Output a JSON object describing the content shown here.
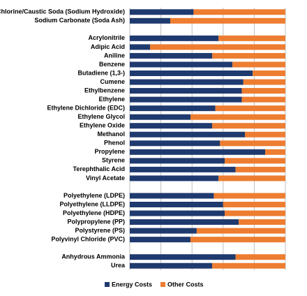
{
  "chart_data": {
    "type": "stacked_bar_horizontal",
    "categories": [
      "Chlorine/Caustic Soda (Sodium Hydroxide)",
      "Sodium Carbonate (Soda Ash)",
      null,
      "Acrylonitrile",
      "Adipic Acid",
      "Aniline",
      "Benzene",
      "Butadiene (1,3-)",
      "Cumene",
      "Ethylbenzene",
      "Ethylene",
      "Ethylene Dichloride (EDC)",
      "Ethylene Glycol",
      "Ethylene Oxide",
      "Methanol",
      "Phenol",
      "Propylene",
      "Styrene",
      "Terephthalic Acid",
      "Vinyl Acetate",
      null,
      "Polyethylene (LDPE)",
      "Polyethylene (LLDPE)",
      "Polyethylene (HDPE)",
      "Polypropylene (PP)",
      "Polystyrene (PS)",
      "Polyvinyl Chloride (PVC)",
      null,
      "Anhydrous Ammonia",
      "Urea"
    ],
    "series": [
      {
        "name": "Energy Costs",
        "color": "#1f3a6e",
        "values": [
          41,
          26,
          null,
          57,
          13,
          53,
          66,
          79,
          73,
          72,
          72,
          55,
          39,
          53,
          74,
          58,
          87,
          61,
          68,
          57,
          null,
          54,
          60,
          61,
          70,
          43,
          39,
          null,
          68,
          53
        ]
      },
      {
        "name": "Other Costs",
        "color": "#ed7d31",
        "values": [
          59,
          74,
          null,
          43,
          87,
          47,
          34,
          21,
          27,
          28,
          28,
          45,
          61,
          47,
          26,
          42,
          13,
          39,
          32,
          43,
          null,
          46,
          40,
          39,
          30,
          57,
          61,
          null,
          32,
          47
        ]
      }
    ],
    "xlim": [
      0,
      100
    ],
    "xticks": [
      0,
      20,
      40,
      60,
      80,
      100
    ],
    "grid": true,
    "legend": "bottom"
  }
}
